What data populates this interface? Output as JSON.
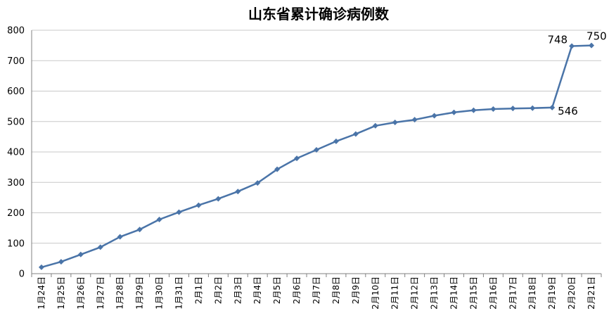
{
  "chart_data": {
    "type": "line",
    "title": "山东省累计确诊病例数",
    "xlabel": "",
    "ylabel": "",
    "ylim": [
      0,
      800
    ],
    "yticks": [
      0,
      100,
      200,
      300,
      400,
      500,
      600,
      700,
      800
    ],
    "grid": true,
    "legend": "none",
    "color": "#4a74a8",
    "categories": [
      "1月24日",
      "1月25日",
      "1月26日",
      "1月27日",
      "1月28日",
      "1月29日",
      "1月30日",
      "1月31日",
      "2月1日",
      "2月2日",
      "2月3日",
      "2月4日",
      "2月5日",
      "2月6日",
      "2月7日",
      "2月8日",
      "2月9日",
      "2月10日",
      "2月11日",
      "2月12日",
      "2月13日",
      "2月14日",
      "2月15日",
      "2月16日",
      "2月17日",
      "2月18日",
      "2月19日",
      "2月20日",
      "2月21日"
    ],
    "series": [
      {
        "values": [
          21,
          39,
          63,
          87,
          121,
          145,
          178,
          202,
          225,
          246,
          270,
          298,
          343,
          379,
          407,
          435,
          459,
          486,
          497,
          506,
          519,
          530,
          537,
          541,
          543,
          544,
          546,
          748,
          750
        ]
      }
    ],
    "data_labels": [
      {
        "index": 26,
        "text": "546"
      },
      {
        "index": 27,
        "text": "748"
      },
      {
        "index": 28,
        "text": "750"
      }
    ]
  }
}
